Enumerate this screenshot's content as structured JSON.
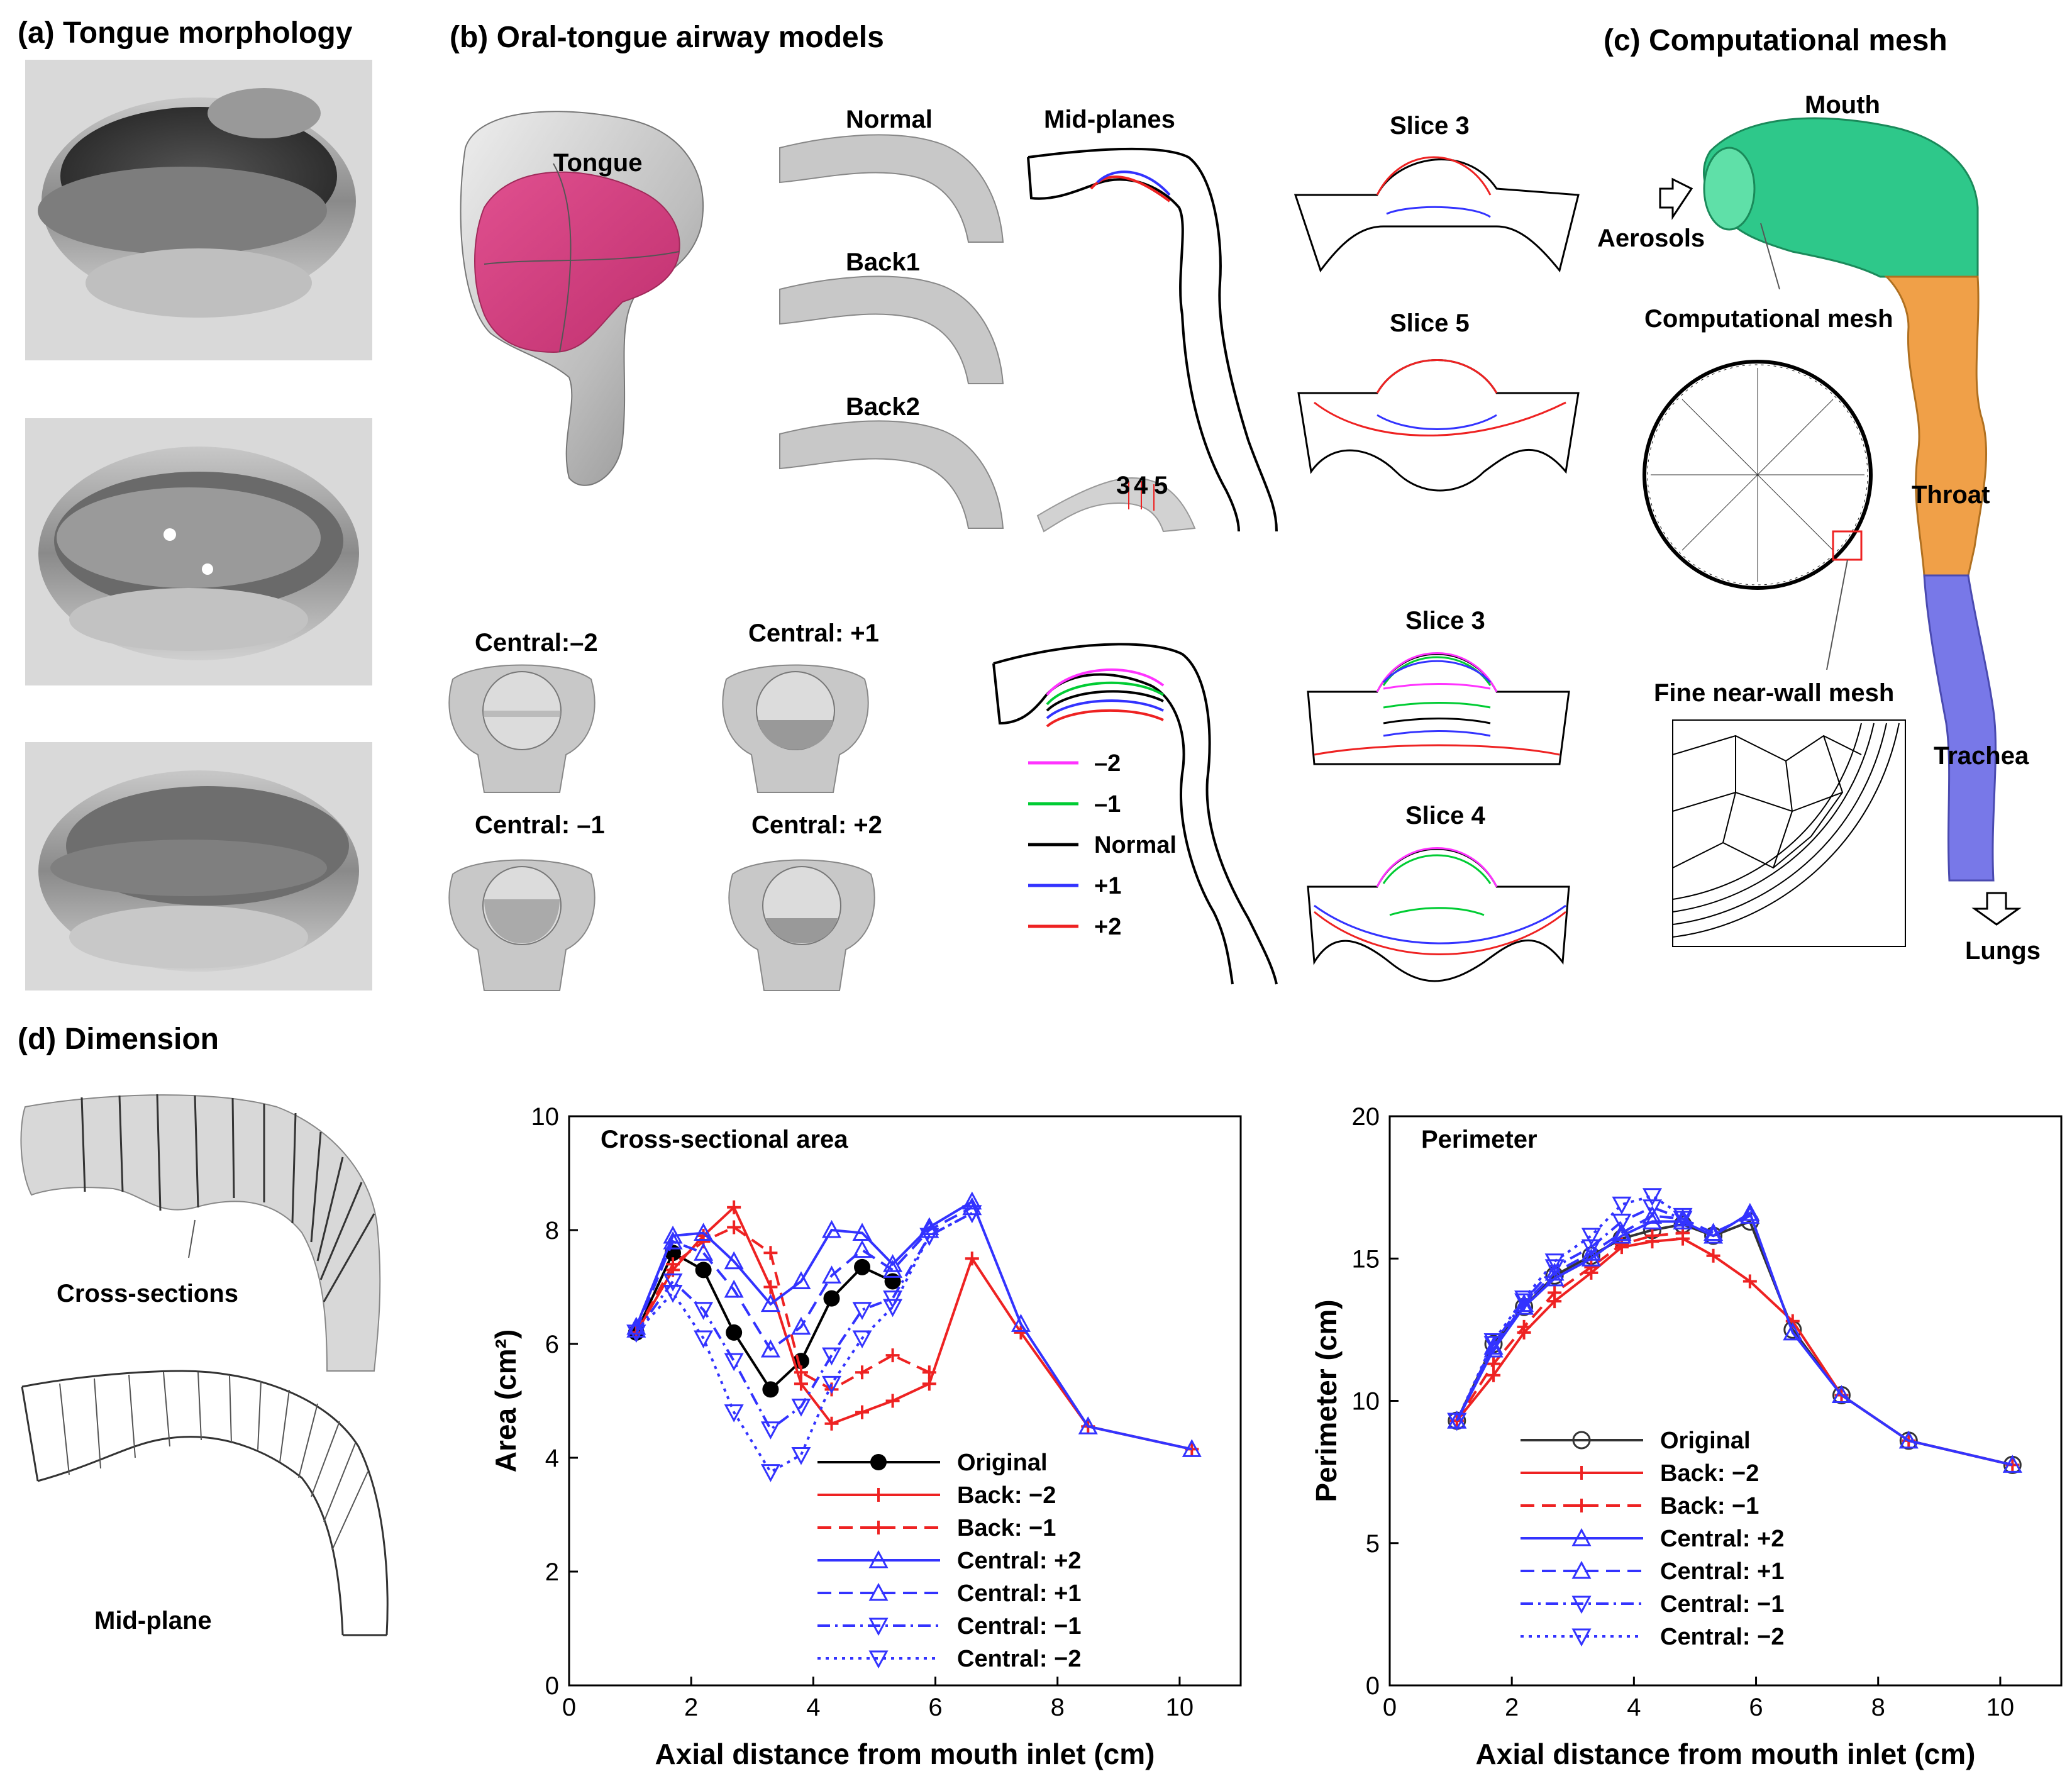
{
  "panels": {
    "a": {
      "title": "(a) Tongue morphology"
    },
    "b": {
      "title": "(b) Oral-tongue airway models",
      "tongue_label": "Tongue",
      "model_labels": [
        "Normal",
        "Back1",
        "Back2"
      ],
      "midplanes_label": "Mid-planes",
      "slice_numbers": [
        "3",
        "4",
        "5"
      ],
      "slice_titles_top": [
        "Slice 3",
        "Slice 5"
      ],
      "slice_titles_bottom": [
        "Slice 3",
        "Slice 4"
      ],
      "central_labels": [
        "Central:–2",
        "Central: +1",
        "Central: –1",
        "Central: +2"
      ],
      "legend": [
        {
          "label": "–2",
          "color": "#ff33ff"
        },
        {
          "label": "–1",
          "color": "#00cc33"
        },
        {
          "label": "Normal",
          "color": "#000000"
        },
        {
          "label": "+1",
          "color": "#3333ff"
        },
        {
          "label": "+2",
          "color": "#ee2222"
        }
      ]
    },
    "c": {
      "title": "(c) Computational mesh",
      "labels": {
        "mouth": "Mouth",
        "aerosols": "Aerosols",
        "mesh": "Computational mesh",
        "throat": "Throat",
        "nearwall": "Fine near-wall mesh",
        "trachea": "Trachea",
        "lungs": "Lungs"
      },
      "colors": {
        "mouth": "#2ec88a",
        "throat": "#f0a048",
        "trachea": "#7878e8"
      }
    },
    "d": {
      "title": "(d) Dimension",
      "cross_sections_label": "Cross-sections",
      "midplane_label": "Mid-plane"
    }
  },
  "chart_data": [
    {
      "type": "line",
      "title": "Cross-sectional area",
      "xlabel": "Axial distance from mouth inlet (cm)",
      "ylabel": "Area (cm²)",
      "xlim": [
        0,
        11
      ],
      "ylim": [
        0,
        10
      ],
      "xticks": [
        "0",
        "2",
        "4",
        "6",
        "8",
        "10"
      ],
      "yticks": [
        "0",
        "2",
        "4",
        "6",
        "8",
        "10"
      ],
      "legend_position": "bottom-center",
      "series": [
        {
          "name": "Original",
          "color": "#000000",
          "dash": "solid",
          "marker": "dot",
          "x": [
            1.1,
            1.7,
            2.2,
            2.7,
            3.3,
            3.8,
            4.3,
            4.8,
            5.3
          ],
          "y": [
            6.2,
            7.6,
            7.3,
            6.2,
            5.2,
            5.7,
            6.8,
            7.35,
            7.1
          ]
        },
        {
          "name": "Back: −2",
          "color": "#ee2222",
          "dash": "solid",
          "marker": "plus",
          "x": [
            1.1,
            1.7,
            2.2,
            2.7,
            3.3,
            3.8,
            4.3,
            4.8,
            5.3,
            5.9,
            6.6,
            7.4,
            8.5,
            10.2
          ],
          "y": [
            6.2,
            7.3,
            7.9,
            8.4,
            7.0,
            5.3,
            4.6,
            4.8,
            5.0,
            5.3,
            7.5,
            6.2,
            4.55,
            4.15
          ]
        },
        {
          "name": "Back: −1",
          "color": "#ee2222",
          "dash": "dash",
          "marker": "plus",
          "x": [
            1.1,
            1.7,
            2.2,
            2.7,
            3.3,
            3.8,
            4.3,
            4.8,
            5.3,
            5.9
          ],
          "y": [
            6.2,
            7.4,
            7.8,
            8.05,
            7.6,
            5.5,
            5.2,
            5.5,
            5.8,
            5.5
          ]
        },
        {
          "name": "Central: +2",
          "color": "#3333ff",
          "dash": "solid",
          "marker": "tri-up",
          "x": [
            1.1,
            1.7,
            2.2,
            2.7,
            3.3,
            3.8,
            4.3,
            4.8,
            5.3,
            5.9,
            6.6,
            7.4,
            8.5,
            10.2
          ],
          "y": [
            6.3,
            7.9,
            7.95,
            7.45,
            6.7,
            7.1,
            8.0,
            7.95,
            7.4,
            8.05,
            8.5,
            6.35,
            4.55,
            4.15
          ]
        },
        {
          "name": "Central: +1",
          "color": "#3333ff",
          "dash": "dash",
          "marker": "tri-up",
          "x": [
            1.1,
            1.7,
            2.2,
            2.7,
            3.3,
            3.8,
            4.3,
            4.8,
            5.3,
            5.9,
            6.6
          ],
          "y": [
            6.25,
            7.8,
            7.6,
            6.95,
            5.9,
            6.3,
            7.2,
            7.65,
            7.3,
            8.0,
            8.4
          ]
        },
        {
          "name": "Central: −1",
          "color": "#3333ff",
          "dash": "dashdot",
          "marker": "tri-down",
          "x": [
            1.1,
            1.7,
            2.2,
            2.7,
            3.3,
            3.8,
            4.3,
            4.8,
            5.3,
            5.9,
            6.6
          ],
          "y": [
            6.2,
            7.1,
            6.6,
            5.7,
            4.5,
            4.9,
            5.8,
            6.6,
            6.8,
            7.9,
            8.3
          ]
        },
        {
          "name": "Central: −2",
          "color": "#3333ff",
          "dash": "dot",
          "marker": "tri-down",
          "x": [
            1.1,
            1.7,
            2.2,
            2.7,
            3.3,
            3.8,
            4.3,
            4.8,
            5.3,
            5.9,
            6.6
          ],
          "y": [
            6.2,
            6.9,
            6.1,
            4.8,
            3.75,
            4.05,
            5.3,
            6.1,
            6.65,
            7.9,
            8.3
          ]
        }
      ]
    },
    {
      "type": "line",
      "title": "Perimeter",
      "xlabel": "Axial distance from mouth inlet (cm)",
      "ylabel": "Perimeter (cm)",
      "xlim": [
        0,
        11
      ],
      "ylim": [
        0,
        20
      ],
      "xticks": [
        "0",
        "2",
        "4",
        "6",
        "8",
        "10"
      ],
      "yticks": [
        "0",
        "5",
        "10",
        "15",
        "20"
      ],
      "legend_position": "bottom-center",
      "series": [
        {
          "name": "Original",
          "color": "#333333",
          "dash": "solid",
          "marker": "circle",
          "x": [
            1.1,
            1.7,
            2.2,
            2.7,
            3.3,
            3.8,
            4.3,
            4.8,
            5.3,
            5.9,
            6.6,
            7.4,
            8.5,
            10.2
          ],
          "y": [
            9.3,
            12.0,
            13.3,
            14.4,
            15.1,
            15.7,
            16.0,
            16.2,
            15.8,
            16.3,
            12.5,
            10.2,
            8.6,
            7.75
          ]
        },
        {
          "name": "Back: −2",
          "color": "#ee2222",
          "dash": "solid",
          "marker": "plus",
          "x": [
            1.1,
            1.7,
            2.2,
            2.7,
            3.3,
            3.8,
            4.3,
            4.8,
            5.3,
            5.9,
            6.6,
            7.4,
            8.5,
            10.2
          ],
          "y": [
            9.3,
            10.9,
            12.4,
            13.5,
            14.5,
            15.4,
            15.6,
            15.7,
            15.1,
            14.2,
            12.8,
            10.2,
            8.6,
            7.75
          ]
        },
        {
          "name": "Back: −1",
          "color": "#ee2222",
          "dash": "dash",
          "marker": "plus",
          "x": [
            1.1,
            1.7,
            2.2,
            2.7,
            3.3,
            3.8,
            4.3,
            4.8
          ],
          "y": [
            9.3,
            11.3,
            12.6,
            13.8,
            14.7,
            15.5,
            15.8,
            15.9
          ]
        },
        {
          "name": "Central: +2",
          "color": "#3333ff",
          "dash": "solid",
          "marker": "tri-up",
          "x": [
            1.1,
            1.7,
            2.2,
            2.7,
            3.3,
            3.8,
            4.3,
            4.8,
            5.3,
            5.9,
            6.6,
            7.4,
            8.5,
            10.2
          ],
          "y": [
            9.3,
            11.8,
            13.3,
            14.3,
            15.0,
            15.8,
            16.3,
            16.3,
            15.8,
            16.6,
            12.4,
            10.2,
            8.6,
            7.75
          ]
        },
        {
          "name": "Central: +1",
          "color": "#3333ff",
          "dash": "dash",
          "marker": "tri-up",
          "x": [
            1.1,
            1.7,
            2.2,
            2.7,
            3.3,
            3.8,
            4.3,
            4.8,
            5.3,
            5.9
          ],
          "y": [
            9.3,
            11.9,
            13.4,
            14.5,
            15.2,
            15.9,
            16.5,
            16.4,
            15.9,
            16.5
          ]
        },
        {
          "name": "Central: −1",
          "color": "#3333ff",
          "dash": "dashdot",
          "marker": "tri-down",
          "x": [
            1.1,
            1.7,
            2.2,
            2.7,
            3.3,
            3.8,
            4.3,
            4.8
          ],
          "y": [
            9.3,
            12.0,
            13.5,
            14.7,
            15.4,
            16.3,
            16.8,
            16.4
          ]
        },
        {
          "name": "Central: −2",
          "color": "#3333ff",
          "dash": "dot",
          "marker": "tri-down",
          "x": [
            1.1,
            1.7,
            2.2,
            2.7,
            3.3,
            3.8,
            4.3,
            4.8
          ],
          "y": [
            9.3,
            12.1,
            13.6,
            14.9,
            15.8,
            16.9,
            17.2,
            16.5
          ]
        }
      ]
    }
  ]
}
